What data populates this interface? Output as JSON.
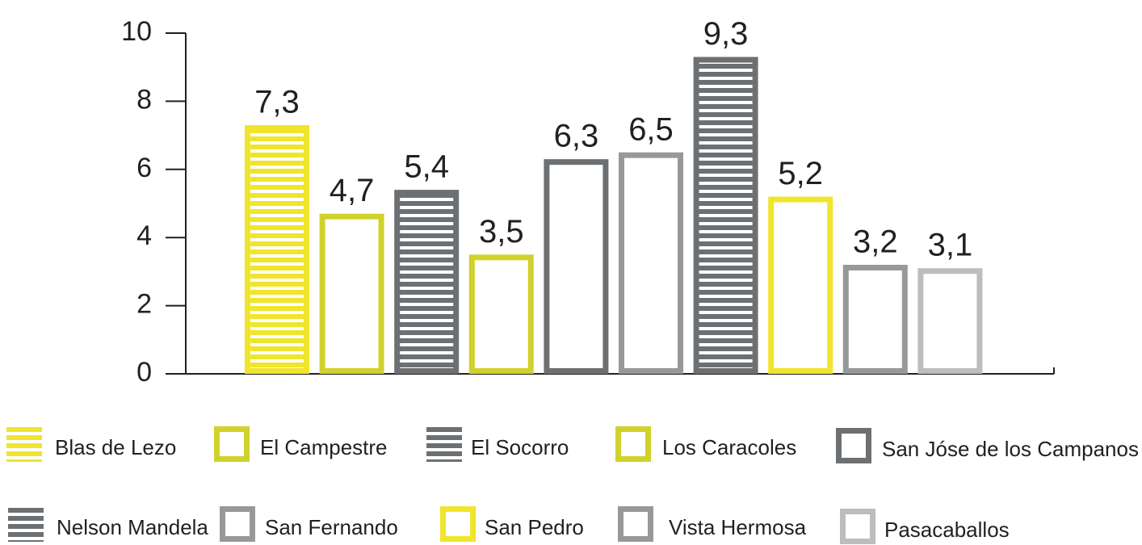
{
  "chart_data": {
    "type": "bar",
    "categories": [
      "Blas de Lezo",
      "El Campestre",
      "El Socorro",
      "Los Caracoles",
      "San Jóse de los Campanos",
      "San Fernando",
      "Nelson Mandela",
      "San Pedro",
      "Vista Hermosa",
      "Pasacaballos"
    ],
    "values": [
      7.3,
      4.7,
      5.4,
      3.5,
      6.3,
      6.5,
      9.3,
      5.2,
      3.2,
      3.1
    ],
    "value_labels": [
      "7,3",
      "4,7",
      "5,4",
      "3,5",
      "6,3",
      "6,5",
      "9,3",
      "5,2",
      "3,2",
      "3,1"
    ],
    "colors": [
      "#f0e52c",
      "#d0d22b",
      "#6d7072",
      "#d0d22b",
      "#6d7072",
      "#979899",
      "#6d7072",
      "#f0e52c",
      "#979899",
      "#bdbdbf"
    ],
    "styles": [
      "striped",
      "outline",
      "striped",
      "outline",
      "outline",
      "outline",
      "striped",
      "outline",
      "outline",
      "outline"
    ],
    "ylim": [
      0,
      10
    ],
    "yticks": [
      0,
      2,
      4,
      6,
      8,
      10
    ],
    "grid": false
  }
}
